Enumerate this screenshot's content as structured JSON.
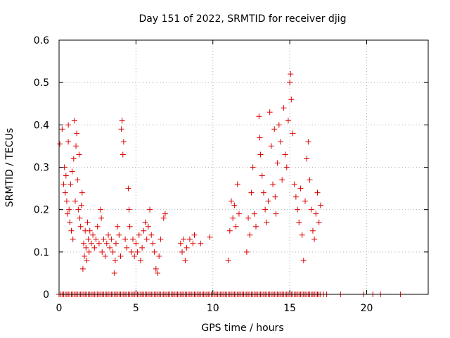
{
  "chart_data": {
    "type": "scatter",
    "title": "Day 151 of 2022, SRMTID for receiver djig",
    "xlabel": "GPS time / hours",
    "ylabel": "SRMTID / TECUs",
    "xlim": [
      0,
      24
    ],
    "ylim": [
      0,
      0.6
    ],
    "xticks": [
      "0",
      "5",
      "10",
      "15",
      "20"
    ],
    "xtick_values": [
      0,
      5,
      10,
      15,
      20
    ],
    "yticks": [
      "0",
      "0.1",
      "0.2",
      "0.3",
      "0.4",
      "0.5",
      "0.6"
    ],
    "ytick_values": [
      0,
      0.1,
      0.2,
      0.3,
      0.4,
      0.5,
      0.6
    ],
    "grid": true,
    "marker": "plus",
    "color": "#dd0000",
    "series": [
      {
        "name": "SRMTID",
        "points": [
          [
            0.05,
            0.355
          ],
          [
            0.2,
            0.39
          ],
          [
            0.3,
            0.26
          ],
          [
            0.35,
            0.3
          ],
          [
            0.4,
            0.24
          ],
          [
            0.45,
            0.28
          ],
          [
            0.5,
            0.22
          ],
          [
            0.55,
            0.19
          ],
          [
            0.6,
            0.4
          ],
          [
            0.6,
            0.36
          ],
          [
            0.65,
            0.2
          ],
          [
            0.7,
            0.17
          ],
          [
            0.75,
            0.26
          ],
          [
            0.8,
            0.15
          ],
          [
            0.85,
            0.29
          ],
          [
            0.9,
            0.13
          ],
          [
            0.95,
            0.32
          ],
          [
            1.0,
            0.41
          ],
          [
            1.05,
            0.22
          ],
          [
            1.1,
            0.35
          ],
          [
            1.15,
            0.38
          ],
          [
            1.2,
            0.27
          ],
          [
            1.25,
            0.2
          ],
          [
            1.3,
            0.33
          ],
          [
            1.35,
            0.18
          ],
          [
            1.4,
            0.16
          ],
          [
            1.45,
            0.21
          ],
          [
            1.5,
            0.24
          ],
          [
            1.55,
            0.06
          ],
          [
            1.6,
            0.12
          ],
          [
            1.65,
            0.09
          ],
          [
            1.7,
            0.15
          ],
          [
            1.75,
            0.11
          ],
          [
            1.8,
            0.08
          ],
          [
            1.85,
            0.17
          ],
          [
            1.9,
            0.13
          ],
          [
            1.95,
            0.1
          ],
          [
            2.0,
            0.15
          ],
          [
            2.1,
            0.12
          ],
          [
            2.2,
            0.14
          ],
          [
            2.3,
            0.11
          ],
          [
            2.4,
            0.13
          ],
          [
            2.5,
            0.16
          ],
          [
            2.6,
            0.12
          ],
          [
            2.7,
            0.2
          ],
          [
            2.75,
            0.18
          ],
          [
            2.8,
            0.1
          ],
          [
            2.9,
            0.13
          ],
          [
            3.0,
            0.09
          ],
          [
            3.1,
            0.12
          ],
          [
            3.2,
            0.14
          ],
          [
            3.3,
            0.11
          ],
          [
            3.4,
            0.13
          ],
          [
            3.5,
            0.1
          ],
          [
            3.6,
            0.05
          ],
          [
            3.65,
            0.08
          ],
          [
            3.7,
            0.12
          ],
          [
            3.8,
            0.16
          ],
          [
            3.9,
            0.14
          ],
          [
            4.0,
            0.09
          ],
          [
            4.05,
            0.39
          ],
          [
            4.1,
            0.41
          ],
          [
            4.15,
            0.33
          ],
          [
            4.2,
            0.36
          ],
          [
            4.3,
            0.13
          ],
          [
            4.4,
            0.11
          ],
          [
            4.5,
            0.25
          ],
          [
            4.55,
            0.2
          ],
          [
            4.6,
            0.16
          ],
          [
            4.7,
            0.1
          ],
          [
            4.8,
            0.13
          ],
          [
            4.9,
            0.09
          ],
          [
            5.0,
            0.12
          ],
          [
            5.1,
            0.1
          ],
          [
            5.2,
            0.14
          ],
          [
            5.3,
            0.08
          ],
          [
            5.4,
            0.11
          ],
          [
            5.5,
            0.15
          ],
          [
            5.6,
            0.17
          ],
          [
            5.7,
            0.13
          ],
          [
            5.8,
            0.16
          ],
          [
            5.9,
            0.2
          ],
          [
            6.0,
            0.14
          ],
          [
            6.1,
            0.12
          ],
          [
            6.2,
            0.1
          ],
          [
            6.3,
            0.06
          ],
          [
            6.4,
            0.05
          ],
          [
            6.5,
            0.09
          ],
          [
            6.6,
            0.13
          ],
          [
            6.8,
            0.18
          ],
          [
            6.9,
            0.19
          ],
          [
            7.9,
            0.12
          ],
          [
            8.0,
            0.1
          ],
          [
            8.1,
            0.13
          ],
          [
            8.2,
            0.08
          ],
          [
            8.3,
            0.11
          ],
          [
            8.5,
            0.13
          ],
          [
            8.7,
            0.12
          ],
          [
            8.8,
            0.14
          ],
          [
            9.2,
            0.12
          ],
          [
            9.8,
            0.135
          ],
          [
            11.0,
            0.08
          ],
          [
            11.1,
            0.15
          ],
          [
            11.2,
            0.22
          ],
          [
            11.3,
            0.18
          ],
          [
            11.4,
            0.21
          ],
          [
            11.5,
            0.16
          ],
          [
            11.6,
            0.26
          ],
          [
            11.7,
            0.19
          ],
          [
            12.2,
            0.1
          ],
          [
            12.3,
            0.18
          ],
          [
            12.4,
            0.14
          ],
          [
            12.5,
            0.24
          ],
          [
            12.6,
            0.3
          ],
          [
            12.7,
            0.19
          ],
          [
            12.8,
            0.16
          ],
          [
            13.0,
            0.42
          ],
          [
            13.05,
            0.37
          ],
          [
            13.1,
            0.33
          ],
          [
            13.2,
            0.28
          ],
          [
            13.3,
            0.24
          ],
          [
            13.4,
            0.2
          ],
          [
            13.5,
            0.17
          ],
          [
            13.6,
            0.22
          ],
          [
            13.7,
            0.43
          ],
          [
            13.8,
            0.35
          ],
          [
            13.9,
            0.26
          ],
          [
            14.0,
            0.39
          ],
          [
            14.05,
            0.23
          ],
          [
            14.1,
            0.19
          ],
          [
            14.2,
            0.31
          ],
          [
            14.3,
            0.4
          ],
          [
            14.4,
            0.36
          ],
          [
            14.5,
            0.27
          ],
          [
            14.6,
            0.44
          ],
          [
            14.7,
            0.33
          ],
          [
            14.8,
            0.3
          ],
          [
            14.9,
            0.41
          ],
          [
            15.0,
            0.5
          ],
          [
            15.05,
            0.52
          ],
          [
            15.1,
            0.46
          ],
          [
            15.2,
            0.38
          ],
          [
            15.3,
            0.26
          ],
          [
            15.4,
            0.23
          ],
          [
            15.5,
            0.2
          ],
          [
            15.6,
            0.17
          ],
          [
            15.7,
            0.25
          ],
          [
            15.8,
            0.14
          ],
          [
            15.9,
            0.08
          ],
          [
            16.0,
            0.22
          ],
          [
            16.1,
            0.32
          ],
          [
            16.2,
            0.36
          ],
          [
            16.3,
            0.27
          ],
          [
            16.4,
            0.2
          ],
          [
            16.5,
            0.15
          ],
          [
            16.6,
            0.13
          ],
          [
            16.7,
            0.19
          ],
          [
            16.8,
            0.24
          ],
          [
            16.9,
            0.17
          ],
          [
            17.0,
            0.21
          ]
        ]
      }
    ],
    "zero_line_points_x": [
      0.0,
      0.1,
      0.2,
      0.3,
      0.4,
      0.5,
      0.6,
      0.7,
      0.8,
      0.9,
      1.0,
      1.1,
      1.2,
      1.3,
      1.4,
      1.5,
      1.6,
      1.7,
      1.8,
      1.9,
      2.0,
      2.1,
      2.2,
      2.3,
      2.4,
      2.5,
      2.6,
      2.7,
      2.8,
      2.9,
      3.0,
      3.1,
      3.2,
      3.3,
      3.4,
      3.5,
      3.6,
      3.7,
      3.8,
      3.9,
      4.0,
      4.1,
      4.2,
      4.3,
      4.4,
      4.5,
      4.6,
      4.7,
      4.8,
      4.9,
      5.0,
      5.1,
      5.2,
      5.3,
      5.4,
      5.5,
      5.6,
      5.7,
      5.8,
      5.9,
      6.0,
      6.1,
      6.2,
      6.3,
      6.4,
      6.5,
      6.6,
      6.7,
      6.8,
      6.9,
      7.0,
      7.1,
      7.2,
      7.3,
      7.4,
      7.5,
      7.6,
      7.7,
      7.8,
      7.9,
      8.0,
      8.1,
      8.2,
      8.3,
      8.4,
      8.5,
      8.6,
      8.7,
      8.8,
      8.9,
      9.0,
      9.1,
      9.2,
      9.3,
      9.4,
      9.5,
      9.6,
      9.7,
      9.8,
      9.9,
      10.0,
      10.1,
      10.2,
      10.3,
      10.4,
      10.5,
      10.6,
      10.7,
      10.8,
      10.9,
      11.0,
      11.1,
      11.2,
      11.3,
      11.4,
      11.5,
      11.6,
      11.7,
      11.8,
      11.9,
      12.0,
      12.1,
      12.2,
      12.3,
      12.4,
      12.5,
      12.6,
      12.7,
      12.8,
      12.9,
      13.0,
      13.1,
      13.2,
      13.3,
      13.4,
      13.5,
      13.6,
      13.7,
      13.8,
      13.9,
      14.0,
      14.1,
      14.2,
      14.3,
      14.4,
      14.5,
      14.6,
      14.7,
      14.8,
      14.9,
      15.0,
      15.1,
      15.2,
      15.3,
      15.4,
      15.5,
      15.6,
      15.7,
      15.8,
      15.9,
      16.0,
      16.1,
      16.2,
      16.3,
      16.4,
      16.5,
      16.6,
      16.7,
      16.8,
      16.9,
      17.0,
      17.2,
      17.4,
      18.3,
      19.8,
      20.4,
      20.9,
      22.2
    ]
  }
}
